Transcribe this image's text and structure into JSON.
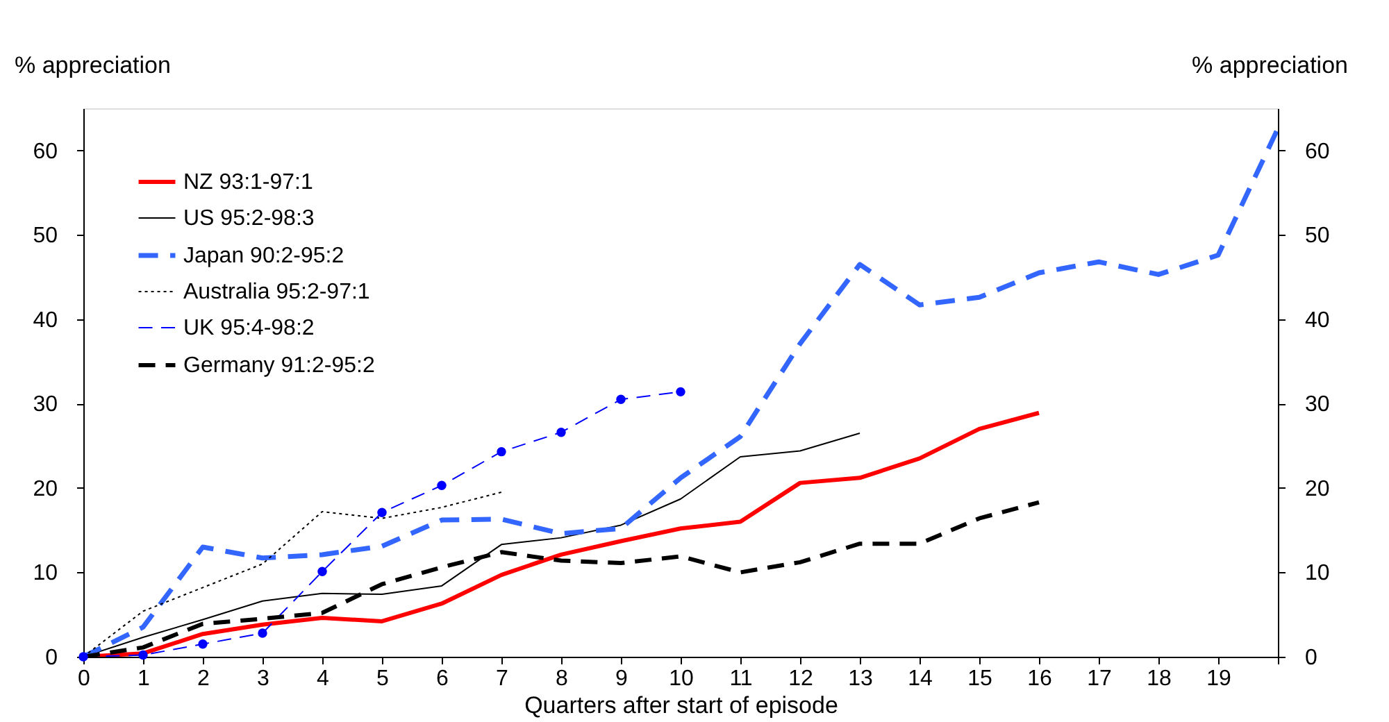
{
  "chart_data": {
    "type": "line",
    "xlabel": "Quarters after start of episode",
    "ylabel": "% appreciation",
    "y2label": "% appreciation",
    "x": [
      0,
      1,
      2,
      3,
      4,
      5,
      6,
      7,
      8,
      9,
      10,
      11,
      12,
      13,
      14,
      15,
      16,
      17,
      18,
      19,
      20
    ],
    "series": [
      {
        "name": "NZ 93:1-97:1",
        "color": "#ff0000",
        "line_style": "solid",
        "marker": "none",
        "values": [
          0,
          0.4,
          2.7,
          3.8,
          4.6,
          4.2,
          6.3,
          9.7,
          12.1,
          13.7,
          15.2,
          16.0,
          20.6,
          21.2,
          23.5,
          27.0,
          28.9,
          null,
          null,
          null,
          null
        ]
      },
      {
        "name": "US 95:2-98:3",
        "color": "#000000",
        "line_style": "solid",
        "marker": "none",
        "values": [
          0,
          2.3,
          4.4,
          6.6,
          7.5,
          7.4,
          8.4,
          13.3,
          14.1,
          15.6,
          18.7,
          23.7,
          24.4,
          26.5,
          null,
          null,
          null,
          null,
          null,
          null,
          null
        ]
      },
      {
        "name": "Japan 90:2-95:2",
        "color": "#3366ff",
        "line_style": "dashed",
        "marker": "none",
        "values": [
          0,
          3.5,
          13.0,
          11.7,
          12.1,
          13.1,
          16.2,
          16.3,
          14.6,
          15.2,
          21.2,
          26.1,
          37.1,
          46.5,
          41.7,
          42.6,
          45.5,
          46.8,
          45.3,
          47.6,
          62.6
        ]
      },
      {
        "name": "Australia 95:2-97:1",
        "color": "#000000",
        "line_style": "dotted",
        "marker": "none",
        "values": [
          0,
          5.4,
          8.2,
          11.0,
          17.2,
          16.4,
          17.7,
          19.5,
          null,
          null,
          null,
          null,
          null,
          null,
          null,
          null,
          null,
          null,
          null,
          null,
          null
        ]
      },
      {
        "name": "UK 95:4-98:2",
        "color": "#0000ff",
        "line_style": "dashed",
        "marker": "circle",
        "values": [
          0,
          0.2,
          1.5,
          2.8,
          10.1,
          17.1,
          20.3,
          24.3,
          26.6,
          30.5,
          31.4,
          null,
          null,
          null,
          null,
          null,
          null,
          null,
          null,
          null,
          null
        ]
      },
      {
        "name": "Germany 91:2-95:2",
        "color": "#000000",
        "line_style": "dashed",
        "marker": "none",
        "values": [
          0,
          1.1,
          3.9,
          4.5,
          5.2,
          8.6,
          10.6,
          12.4,
          11.4,
          11.1,
          11.9,
          10.0,
          11.2,
          13.4,
          13.4,
          16.4,
          18.3,
          null,
          null,
          null,
          null
        ]
      }
    ],
    "xlim": [
      0,
      20
    ],
    "xticks": [
      0,
      1,
      2,
      3,
      4,
      5,
      6,
      7,
      8,
      9,
      10,
      11,
      12,
      13,
      14,
      15,
      16,
      17,
      18,
      19,
      {
        "value": 20,
        "label": null
      }
    ],
    "ylim": [
      0,
      65
    ],
    "yticks": [
      0,
      10,
      20,
      30,
      40,
      50,
      60
    ],
    "y2lim": [
      0,
      65
    ],
    "y2ticks": [
      0,
      10,
      20,
      30,
      40,
      50,
      60
    ],
    "grid": false,
    "legend": "top left"
  }
}
